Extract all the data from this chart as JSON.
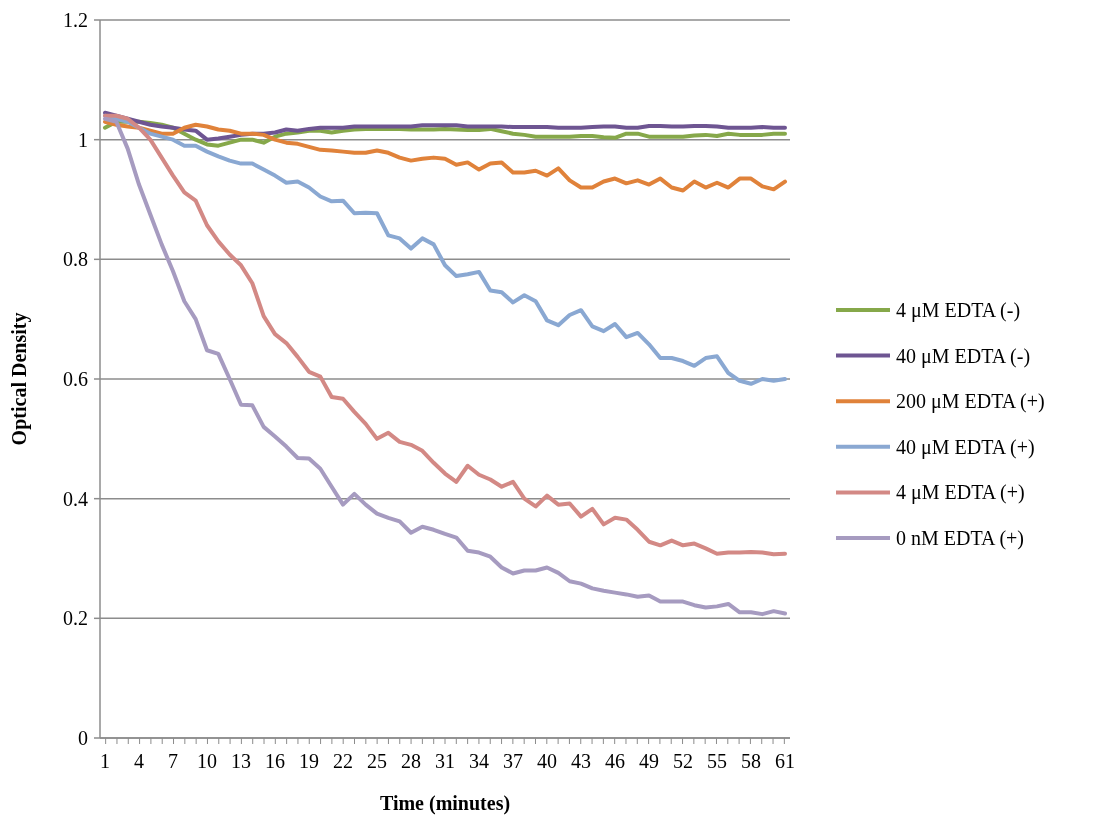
{
  "chart_data": {
    "type": "line",
    "xlabel": "Time (minutes)",
    "ylabel": "Optical Density",
    "categories": [
      "1",
      null,
      null,
      "4",
      null,
      null,
      "7",
      null,
      null,
      "10",
      null,
      null,
      "13",
      null,
      null,
      "16",
      null,
      null,
      "19",
      null,
      null,
      "22",
      null,
      null,
      "25",
      null,
      null,
      "28",
      null,
      null,
      "31",
      null,
      null,
      "34",
      null,
      null,
      "37",
      null,
      null,
      "40",
      null,
      null,
      "43",
      null,
      null,
      "46",
      null,
      null,
      "49",
      null,
      null,
      "52",
      null,
      null,
      "55",
      null,
      null,
      "58",
      null,
      null,
      "61"
    ],
    "ylim": [
      0,
      1.2
    ],
    "yticks": [
      0,
      0.2,
      0.4,
      0.6,
      0.8,
      1,
      1.2
    ],
    "grid": "y",
    "legend": "right",
    "line_style": "solid",
    "marker": "none",
    "series": [
      {
        "name": "4 μM EDTA (-)",
        "color": "#86a84a",
        "values": [
          1.02,
          1.03,
          1.03,
          1.03,
          1.028,
          1.025,
          1.02,
          1.01,
          1.0,
          0.992,
          0.99,
          0.995,
          1.0,
          1.0,
          0.995,
          1.005,
          1.01,
          1.012,
          1.015,
          1.015,
          1.012,
          1.015,
          1.017,
          1.018,
          1.018,
          1.018,
          1.018,
          1.017,
          1.017,
          1.017,
          1.018,
          1.017,
          1.016,
          1.016,
          1.018,
          1.014,
          1.01,
          1.008,
          1.005,
          1.005,
          1.005,
          1.005,
          1.006,
          1.006,
          1.004,
          1.003,
          1.01,
          1.01,
          1.005,
          1.005,
          1.005,
          1.005,
          1.007,
          1.008,
          1.006,
          1.01,
          1.008,
          1.008,
          1.008,
          1.01,
          1.01
        ]
      },
      {
        "name": "40 μM EDTA (-)",
        "color": "#6e5592",
        "values": [
          1.045,
          1.04,
          1.035,
          1.03,
          1.025,
          1.022,
          1.02,
          1.017,
          1.015,
          1.0,
          1.002,
          1.005,
          1.008,
          1.01,
          1.01,
          1.012,
          1.017,
          1.015,
          1.018,
          1.02,
          1.02,
          1.02,
          1.022,
          1.022,
          1.022,
          1.022,
          1.022,
          1.022,
          1.024,
          1.024,
          1.024,
          1.024,
          1.022,
          1.022,
          1.022,
          1.022,
          1.021,
          1.021,
          1.021,
          1.021,
          1.02,
          1.02,
          1.02,
          1.021,
          1.022,
          1.022,
          1.02,
          1.02,
          1.023,
          1.023,
          1.022,
          1.022,
          1.023,
          1.023,
          1.022,
          1.02,
          1.02,
          1.02,
          1.021,
          1.02,
          1.02
        ]
      },
      {
        "name": "200 μM EDTA (+)",
        "color": "#e0823a",
        "values": [
          1.03,
          1.025,
          1.022,
          1.02,
          1.015,
          1.01,
          1.01,
          1.02,
          1.025,
          1.022,
          1.017,
          1.015,
          1.01,
          1.01,
          1.008,
          1.0,
          0.995,
          0.993,
          0.988,
          0.983,
          0.982,
          0.98,
          0.978,
          0.978,
          0.982,
          0.978,
          0.97,
          0.965,
          0.968,
          0.97,
          0.968,
          0.958,
          0.962,
          0.95,
          0.96,
          0.962,
          0.945,
          0.945,
          0.948,
          0.94,
          0.952,
          0.932,
          0.92,
          0.92,
          0.93,
          0.935,
          0.927,
          0.932,
          0.925,
          0.935,
          0.92,
          0.915,
          0.93,
          0.92,
          0.928,
          0.92,
          0.935,
          0.935,
          0.922,
          0.917,
          0.93
        ]
      },
      {
        "name": "40 μM EDTA (+)",
        "color": "#8aa8d2",
        "values": [
          1.04,
          1.035,
          1.03,
          1.02,
          1.01,
          1.005,
          1.0,
          0.99,
          0.99,
          0.98,
          0.972,
          0.965,
          0.96,
          0.96,
          0.95,
          0.94,
          0.928,
          0.93,
          0.92,
          0.905,
          0.897,
          0.898,
          0.877,
          0.878,
          0.877,
          0.84,
          0.835,
          0.818,
          0.835,
          0.825,
          0.79,
          0.772,
          0.775,
          0.779,
          0.748,
          0.745,
          0.728,
          0.74,
          0.73,
          0.698,
          0.69,
          0.707,
          0.715,
          0.688,
          0.68,
          0.692,
          0.67,
          0.677,
          0.658,
          0.635,
          0.635,
          0.63,
          0.622,
          0.635,
          0.638,
          0.61,
          0.597,
          0.592,
          0.6,
          0.597,
          0.6
        ]
      },
      {
        "name": "4 μM EDTA (+)",
        "color": "#d38985",
        "values": [
          1.04,
          1.04,
          1.035,
          1.02,
          1.0,
          0.97,
          0.94,
          0.912,
          0.898,
          0.857,
          0.83,
          0.808,
          0.79,
          0.76,
          0.705,
          0.675,
          0.66,
          0.637,
          0.612,
          0.604,
          0.57,
          0.567,
          0.545,
          0.525,
          0.5,
          0.51,
          0.495,
          0.49,
          0.48,
          0.46,
          0.442,
          0.428,
          0.455,
          0.44,
          0.432,
          0.42,
          0.428,
          0.4,
          0.387,
          0.405,
          0.39,
          0.392,
          0.37,
          0.383,
          0.357,
          0.368,
          0.365,
          0.348,
          0.328,
          0.322,
          0.33,
          0.322,
          0.325,
          0.317,
          0.308,
          0.31,
          0.31,
          0.311,
          0.31,
          0.307,
          0.308
        ]
      },
      {
        "name": "0 nM EDTA (+)",
        "color": "#a69bc0",
        "values": [
          1.035,
          1.03,
          0.985,
          0.925,
          0.875,
          0.825,
          0.78,
          0.73,
          0.7,
          0.648,
          0.642,
          0.6,
          0.557,
          0.556,
          0.52,
          0.504,
          0.487,
          0.468,
          0.467,
          0.45,
          0.42,
          0.39,
          0.408,
          0.39,
          0.375,
          0.368,
          0.362,
          0.343,
          0.353,
          0.348,
          0.341,
          0.335,
          0.313,
          0.31,
          0.303,
          0.285,
          0.275,
          0.28,
          0.28,
          0.285,
          0.276,
          0.262,
          0.258,
          0.25,
          0.246,
          0.243,
          0.24,
          0.236,
          0.238,
          0.228,
          0.228,
          0.228,
          0.222,
          0.218,
          0.22,
          0.224,
          0.21,
          0.21,
          0.207,
          0.212,
          0.208
        ]
      }
    ]
  }
}
